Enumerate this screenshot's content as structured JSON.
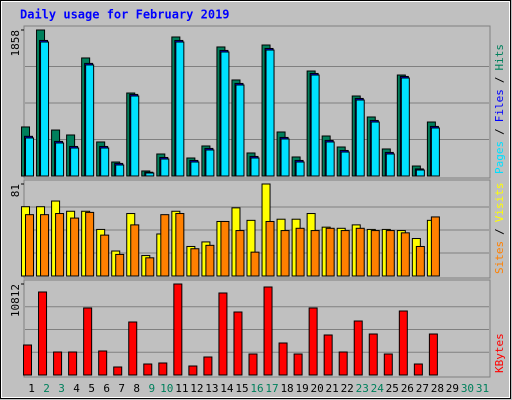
{
  "chart_data": {
    "type": "bar",
    "title": "Daily usage for February 2019",
    "categories": [
      "1",
      "2",
      "3",
      "4",
      "5",
      "6",
      "7",
      "8",
      "9",
      "10",
      "11",
      "12",
      "13",
      "14",
      "15",
      "16",
      "17",
      "18",
      "19",
      "20",
      "21",
      "22",
      "23",
      "24",
      "25",
      "26",
      "27",
      "28",
      "29",
      "30",
      "31"
    ],
    "category_colors": [
      "#000000",
      "#00805c",
      "#00805c",
      "#000000",
      "#000000",
      "#000000",
      "#000000",
      "#000000",
      "#00805c",
      "#00805c",
      "#000000",
      "#000000",
      "#000000",
      "#000000",
      "#000000",
      "#00805c",
      "#00805c",
      "#000000",
      "#000000",
      "#000000",
      "#000000",
      "#000000",
      "#00805c",
      "#00805c",
      "#000000",
      "#000000",
      "#000000",
      "#000000",
      "#000000",
      "#00805c",
      "#00805c"
    ],
    "legend_separator": "/",
    "panels": [
      {
        "ylim": [
          0,
          1858
        ],
        "yticks": [
          1858
        ],
        "series": [
          {
            "name": "Hits",
            "color": "#00805c",
            "values": [
              624,
              1858,
              585,
              522,
              1502,
              433,
              178,
              1056,
              64,
              280,
              1769,
              229,
              382,
              1642,
              1222,
              293,
              1667,
              560,
              242,
              1336,
              509,
              369,
              1018,
              751,
              344,
              1285,
              127,
              687,
              null,
              null,
              null
            ]
          },
          {
            "name": "Files",
            "color": "#0000ff",
            "values": [
              505,
              1725,
              440,
              376,
              1433,
              376,
              160,
              1038,
              48,
              236,
              1725,
              198,
              351,
              1598,
              1178,
              249,
              1623,
              491,
              198,
              1305,
              453,
              325,
              987,
              707,
              300,
              1267,
              90,
              631,
              null,
              null,
              null
            ]
          },
          {
            "name": "Pages",
            "color": "#00e0ff",
            "values": [
              484,
              1705,
              420,
              356,
              1413,
              356,
              140,
              1018,
              38,
              216,
              1705,
              178,
              331,
              1578,
              1158,
              229,
              1603,
              471,
              178,
              1285,
              433,
              305,
              967,
              687,
              280,
              1247,
              76,
              611,
              null,
              null,
              null
            ]
          }
        ]
      },
      {
        "ylim": [
          0,
          81
        ],
        "yticks": [
          81
        ],
        "series": [
          {
            "name": "Visits",
            "color": "#ffff00",
            "values": [
              61,
              61,
              66,
              57,
              57,
              41,
              22,
              55,
              18,
              37,
              57,
              26,
              30,
              48,
              60,
              49,
              81,
              50,
              50,
              55,
              43,
              42,
              45,
              41,
              41,
              40,
              33,
              49,
              null,
              null,
              null
            ]
          },
          {
            "name": "Sites",
            "color": "#ff8000",
            "values": [
              54,
              54,
              55,
              51,
              56,
              36,
              19,
              45,
              16,
              54,
              55,
              24,
              27,
              48,
              40,
              21,
              48,
              40,
              42,
              40,
              42,
              40,
              42,
              40,
              40,
              38,
              26,
              52,
              null,
              null,
              null
            ]
          }
        ]
      },
      {
        "ylim": [
          0,
          10812
        ],
        "yticks": [
          10812
        ],
        "series": [
          {
            "name": "KBytes",
            "color": "#ff0000",
            "values": [
              3564,
              9862,
              2733,
              2733,
              7961,
              2852,
              951,
              6297,
              1307,
              1426,
              10812,
              1069,
              2139,
              9743,
              7485,
              2495,
              10456,
              3802,
              2495,
              7961,
              4753,
              2733,
              6416,
              4871,
              2495,
              7604,
              1307,
              4871,
              null,
              null,
              null
            ]
          }
        ]
      }
    ]
  }
}
